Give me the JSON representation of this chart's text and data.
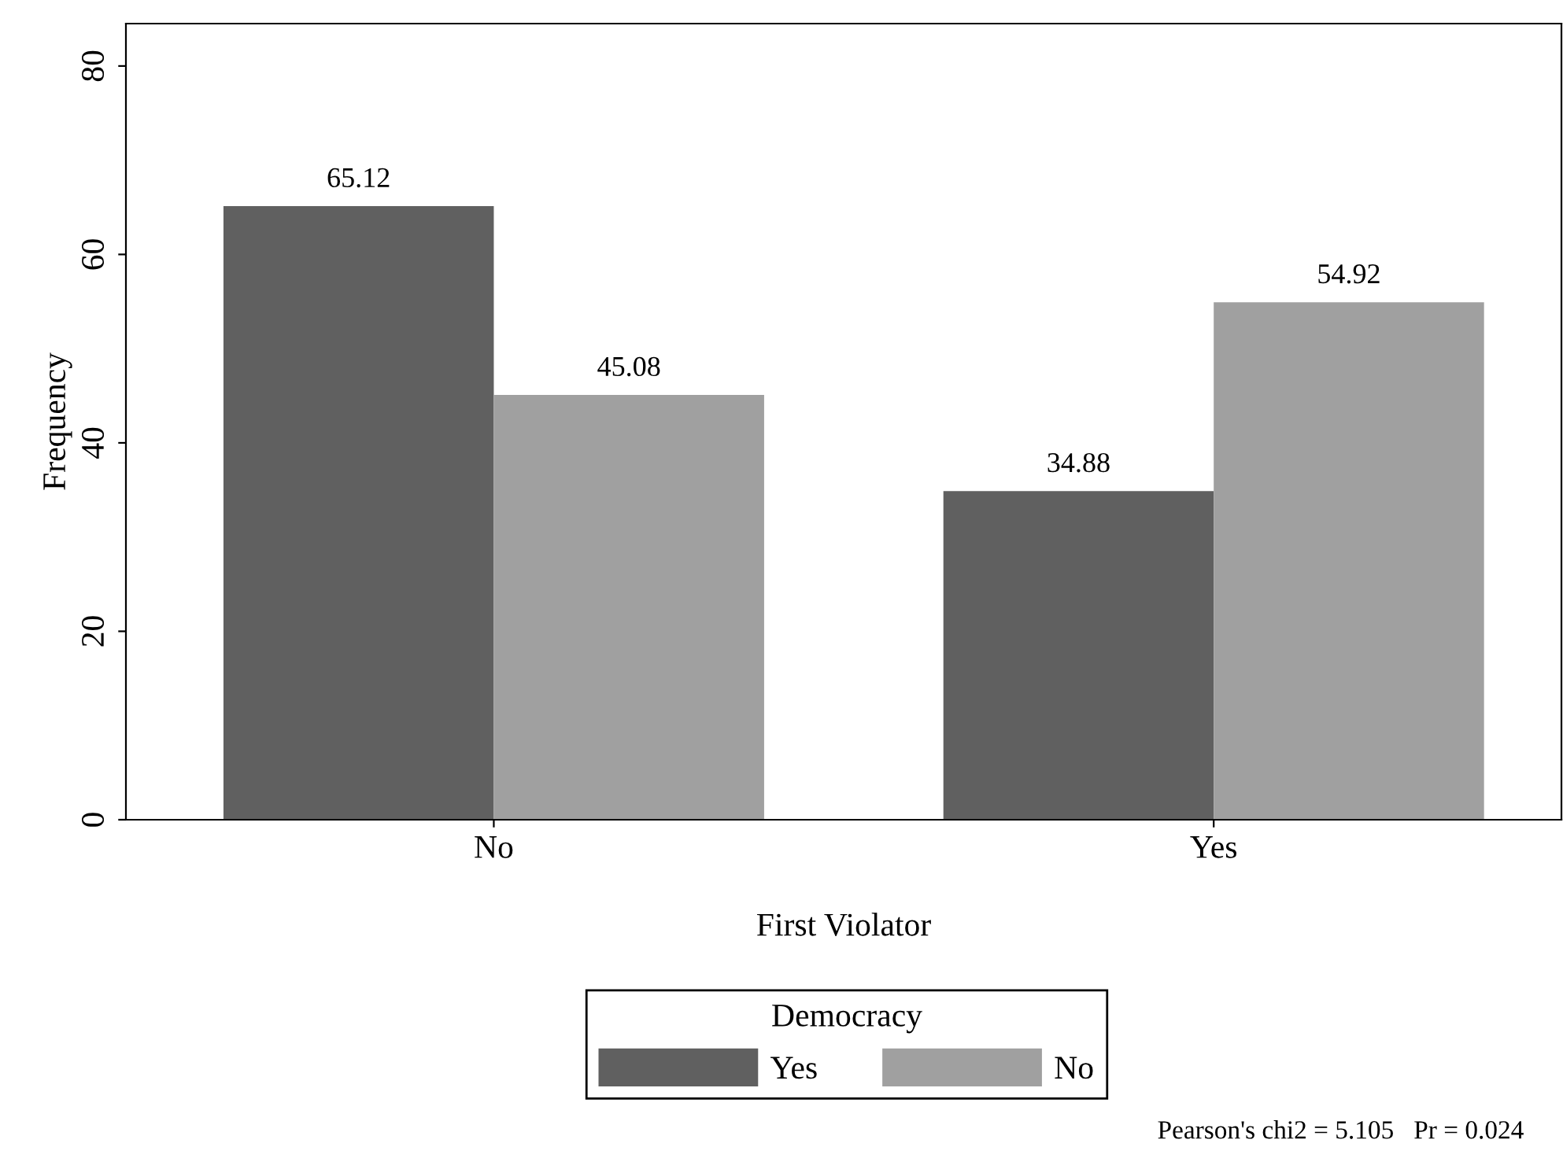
{
  "chart_data": {
    "type": "bar",
    "xlabel": "First Violator",
    "ylabel": "Frequency",
    "legend_title": "Democracy",
    "categories": [
      "No",
      "Yes"
    ],
    "series": [
      {
        "name": "Yes",
        "color": "#606060",
        "values": [
          65.12,
          34.88
        ]
      },
      {
        "name": "No",
        "color": "#a0a0a0",
        "values": [
          45.08,
          54.92
        ]
      }
    ],
    "ylim": [
      0,
      84.5
    ],
    "yticks": [
      0,
      20,
      40,
      60,
      80
    ],
    "grid": false,
    "legend": "bottom",
    "data_labels": true,
    "annotations": [
      "Pearson's chi2 = 5.105   Pr = 0.024"
    ]
  }
}
